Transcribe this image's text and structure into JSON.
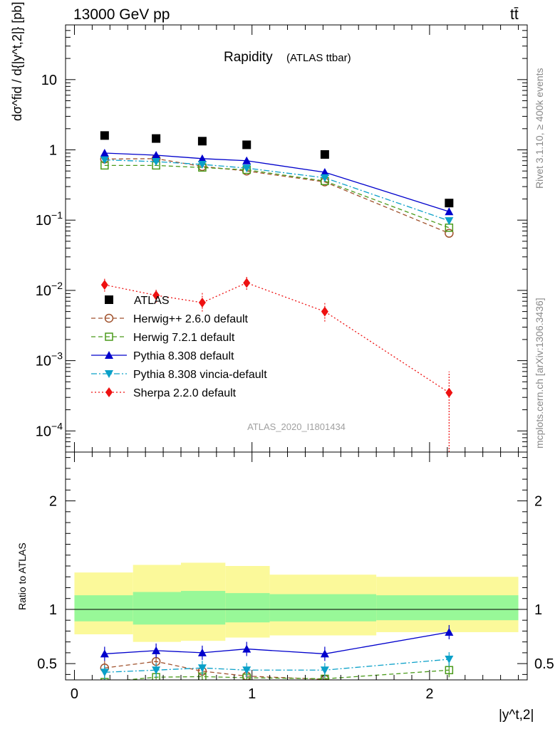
{
  "header": {
    "energy_label": "13000 GeV pp",
    "process_label": "tt̄"
  },
  "side_labels": {
    "rivet": "Rivet 3.1.10, ≥ 400k events",
    "mcplots": "mcplots.cern.ch [arXiv:1306.3436]"
  },
  "chart_data": [
    {
      "type": "scatter",
      "panel": "main",
      "title": "Rapidity",
      "subtitle": "(ATLAS ttbar)",
      "ylabel": "dσ^fid / d{|y^t,2|} [pb]",
      "yscale": "log",
      "ylim": [
        5e-05,
        60
      ],
      "xlim": [
        -0.05,
        2.55
      ],
      "yticks": [
        {
          "value": 0.0001,
          "base": "10",
          "exp": "−4"
        },
        {
          "value": 0.001,
          "base": "10",
          "exp": "−3"
        },
        {
          "value": 0.01,
          "base": "10",
          "exp": "−2"
        },
        {
          "value": 0.1,
          "base": "10",
          "exp": "−1"
        },
        {
          "value": 1,
          "base": "1",
          "exp": ""
        },
        {
          "value": 10,
          "base": "10",
          "exp": ""
        }
      ],
      "watermark": "ATLAS_2020_I1801434",
      "legend_position": "center-left",
      "x": [
        0.17,
        0.46,
        0.72,
        0.97,
        1.41,
        2.11
      ],
      "series": [
        {
          "name": "ATLAS",
          "color": "#000000",
          "marker": "square",
          "line": "none",
          "values": [
            1.6,
            1.45,
            1.33,
            1.18,
            0.86,
            0.175
          ]
        },
        {
          "name": "Herwig++ 2.6.0 default",
          "color": "#a0522d",
          "marker": "open-circle",
          "line": "dashed",
          "values": [
            0.74,
            0.75,
            0.58,
            0.5,
            0.35,
            0.065
          ]
        },
        {
          "name": "Herwig 7.2.1 default",
          "color": "#4a9a1a",
          "marker": "open-square",
          "line": "dashed",
          "values": [
            0.6,
            0.6,
            0.56,
            0.52,
            0.36,
            0.078
          ]
        },
        {
          "name": "Pythia 8.308 default",
          "color": "#0000cc",
          "marker": "triangle-up",
          "line": "solid",
          "values": [
            0.9,
            0.84,
            0.75,
            0.7,
            0.48,
            0.132
          ]
        },
        {
          "name": "Pythia 8.308 vincia-default",
          "color": "#0aa0c8",
          "marker": "triangle-down",
          "line": "dashdot",
          "values": [
            0.72,
            0.68,
            0.62,
            0.55,
            0.4,
            0.098
          ]
        },
        {
          "name": "Sherpa 2.2.0 default",
          "color": "#ee1111",
          "marker": "diamond",
          "line": "dotted",
          "values": [
            0.012,
            0.0085,
            0.0067,
            0.0128,
            0.005,
            0.00035
          ],
          "err_lo": [
            0.0024,
            0.0018,
            0.0017,
            0.0026,
            0.0014,
            0.0003
          ],
          "err_hi": [
            0.0028,
            0.002,
            0.0025,
            0.0034,
            0.0016,
            0.00035
          ]
        }
      ]
    },
    {
      "type": "scatter",
      "panel": "ratio",
      "ylabel": "Ratio to ATLAS",
      "xlabel": "|y^t,2|",
      "ylim": [
        0.35,
        2.45
      ],
      "xlim": [
        -0.05,
        2.55
      ],
      "yticks": [
        0.5,
        1,
        2
      ],
      "xticks": [
        0,
        1,
        2
      ],
      "bins": [
        {
          "lo": 0.0,
          "hi": 0.33,
          "band1": [
            0.89,
            1.13
          ],
          "band2": [
            0.77,
            1.34
          ]
        },
        {
          "lo": 0.33,
          "hi": 0.6,
          "band1": [
            0.86,
            1.16
          ],
          "band2": [
            0.7,
            1.41
          ]
        },
        {
          "lo": 0.6,
          "hi": 0.85,
          "band1": [
            0.86,
            1.17
          ],
          "band2": [
            0.71,
            1.43
          ]
        },
        {
          "lo": 0.85,
          "hi": 1.1,
          "band1": [
            0.88,
            1.15
          ],
          "band2": [
            0.74,
            1.4
          ]
        },
        {
          "lo": 1.1,
          "hi": 1.7,
          "band1": [
            0.89,
            1.14
          ],
          "band2": [
            0.76,
            1.32
          ]
        },
        {
          "lo": 1.7,
          "hi": 2.5,
          "band1": [
            0.9,
            1.13
          ],
          "band2": [
            0.79,
            1.3
          ]
        }
      ],
      "x": [
        0.17,
        0.46,
        0.72,
        0.97,
        1.41,
        2.11
      ],
      "series": [
        {
          "name": "Herwig++ 2.6.0 default",
          "values": [
            0.46,
            0.52,
            0.43,
            0.385,
            0.355,
            0.25
          ]
        },
        {
          "name": "Herwig 7.2.1 default",
          "values": [
            0.33,
            0.375,
            0.38,
            0.37,
            0.36,
            0.44
          ]
        },
        {
          "name": "Pythia 8.308 default",
          "values": [
            0.59,
            0.62,
            0.6,
            0.635,
            0.59,
            0.79
          ]
        },
        {
          "name": "Pythia 8.308 vincia-default",
          "values": [
            0.42,
            0.44,
            0.46,
            0.44,
            0.44,
            0.54
          ]
        }
      ]
    }
  ]
}
